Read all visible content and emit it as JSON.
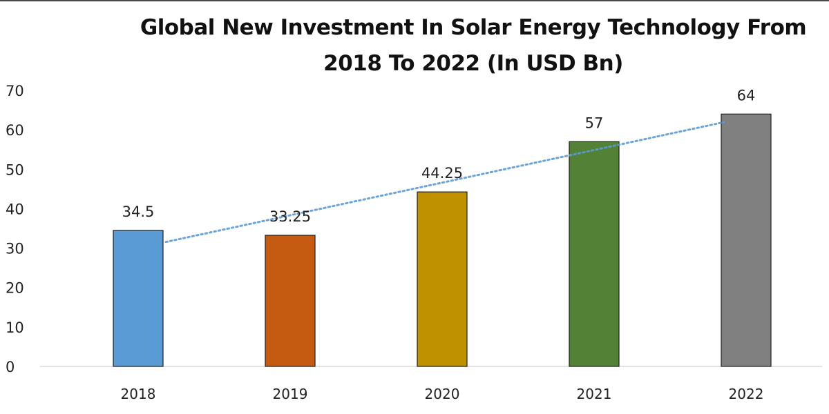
{
  "chart_data": {
    "type": "bar",
    "title": "Global New Investment In Solar Energy Technology From 2018 To 2022 (In USD Bn)",
    "title_lines": [
      "Global New Investment In Solar Energy Technology From",
      "2018 To 2022 (In USD Bn)"
    ],
    "xlabel": "",
    "ylabel": "",
    "categories": [
      "2018",
      "2019",
      "2020",
      "2021",
      "2022"
    ],
    "values": [
      34.5,
      33.25,
      44.25,
      57,
      64
    ],
    "data_labels": [
      "34.5",
      "33.25",
      "44.25",
      "57",
      "64"
    ],
    "bar_colors": [
      "#5b9bd5",
      "#c55a11",
      "#bf9000",
      "#538135",
      "#808080"
    ],
    "ylim": [
      0,
      70
    ],
    "yticks": [
      0,
      10,
      20,
      30,
      40,
      50,
      60,
      70
    ],
    "grid": false,
    "legend": "none",
    "trendline": {
      "type": "linear",
      "style": "dotted",
      "color": "#5b9bd5"
    }
  }
}
